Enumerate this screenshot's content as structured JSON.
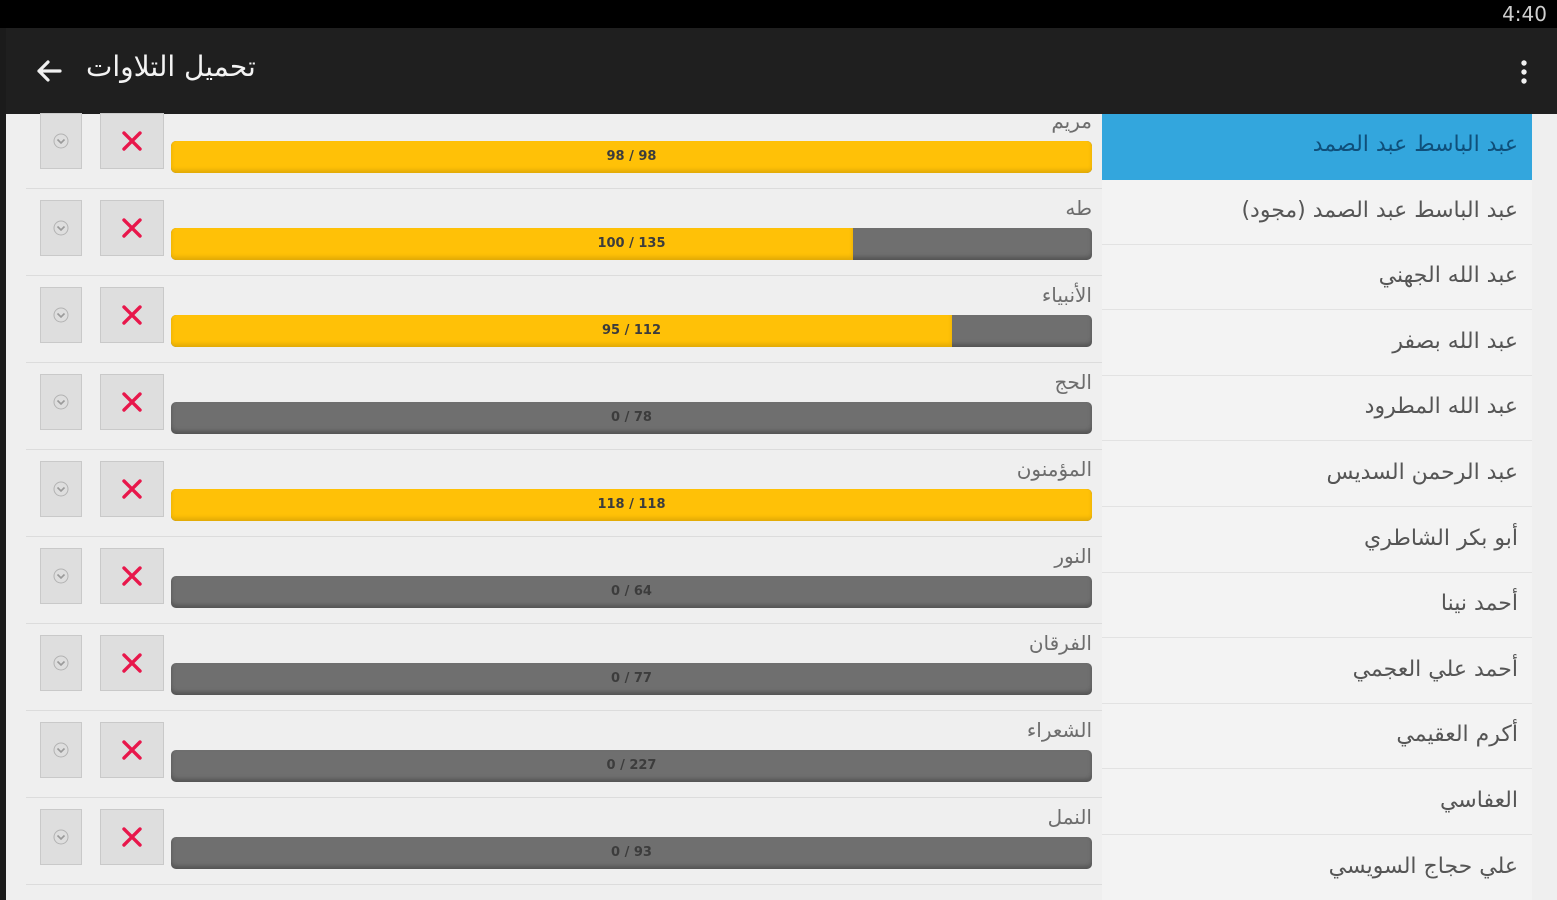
{
  "status_bar": {
    "time": "4:40"
  },
  "toolbar": {
    "title": "تحميل التلاوات"
  },
  "colors": {
    "selected": "#33a6dd",
    "progress_fill": "#ffc107",
    "progress_track": "#6f6f6f",
    "delete_x": "#e8174b"
  },
  "recitations": [
    {
      "surah": "مريم",
      "progress_text": "98 / 98",
      "progress": 1.0
    },
    {
      "surah": "طه",
      "progress_text": "100 / 135",
      "progress": 0.7407
    },
    {
      "surah": "الأنبياء",
      "progress_text": "95 / 112",
      "progress": 0.8482
    },
    {
      "surah": "الحج",
      "progress_text": "0 / 78",
      "progress": 0.0
    },
    {
      "surah": "المؤمنون",
      "progress_text": "118 / 118",
      "progress": 1.0
    },
    {
      "surah": "النور",
      "progress_text": "0 / 64",
      "progress": 0.0
    },
    {
      "surah": "الفرقان",
      "progress_text": "0 / 77",
      "progress": 0.0
    },
    {
      "surah": "الشعراء",
      "progress_text": "0 / 227",
      "progress": 0.0
    },
    {
      "surah": "النمل",
      "progress_text": "0 / 93",
      "progress": 0.0
    }
  ],
  "reciters": [
    {
      "label": "عبد الباسط عبد الصمد",
      "selected": true
    },
    {
      "label": "عبد الباسط عبد الصمد (مجود)",
      "selected": false
    },
    {
      "label": "عبد الله الجهني",
      "selected": false
    },
    {
      "label": "عبد الله بصفر",
      "selected": false
    },
    {
      "label": "عبد الله المطرود",
      "selected": false
    },
    {
      "label": "عبد الرحمن السديس",
      "selected": false
    },
    {
      "label": "أبو بكر الشاطري",
      "selected": false
    },
    {
      "label": "أحمد نينا",
      "selected": false
    },
    {
      "label": "أحمد علي العجمي",
      "selected": false
    },
    {
      "label": "أكرم العقيمي",
      "selected": false
    },
    {
      "label": "العفاسي",
      "selected": false
    },
    {
      "label": "علي حجاج السويسي",
      "selected": false
    }
  ]
}
